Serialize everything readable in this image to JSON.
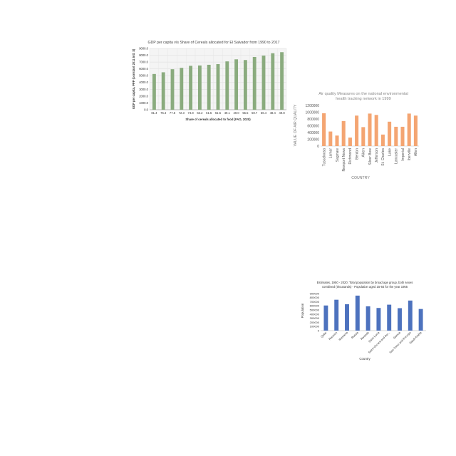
{
  "chart_data": [
    {
      "type": "bar",
      "title": "GDP per capita v/s Share of Cereals allocated for El Salvador from 1990 to 2017",
      "xlabel": "Share of cereals allocated to food (FAO, 2020)",
      "ylabel": "GDP per capita, PPP (constant 2011 intl. $)",
      "categories": [
        "81.4",
        "75.4",
        "77.5",
        "72.3",
        "74.8",
        "63.2",
        "61.5",
        "61.5",
        "49.1",
        "49.0",
        "55.5",
        "50.7",
        "56.4",
        "48.4",
        "49.8"
      ],
      "values": [
        5250,
        5500,
        5950,
        6150,
        6450,
        6500,
        6600,
        6700,
        7100,
        7400,
        7300,
        7750,
        7950,
        8300,
        8450
      ],
      "ylim": [
        0,
        9000
      ],
      "yticks": [
        "0.0",
        "1000.0",
        "2000.0",
        "3000.0",
        "4000.0",
        "5000.0",
        "6000.0",
        "7000.0",
        "8000.0",
        "9000.0"
      ],
      "grid": true,
      "color": "#8aab7e"
    },
    {
      "type": "bar",
      "title": "Air quality Measures on the national environmental health tracking network in 1999",
      "xlabel": "COUNTRY",
      "ylabel": "VALUE OF AIR QUALITY",
      "categories": [
        "Tuscaloosa",
        "Lamar",
        "Saginaw",
        "Newport News",
        "Richmond",
        "Benton",
        "Aiken",
        "Silver Bow",
        "Jefferson",
        "St. Charles",
        "Lake",
        "Lancaster",
        "Imperial",
        "Iberville",
        "Allen"
      ],
      "values": [
        970000,
        430000,
        310000,
        740000,
        250000,
        900000,
        560000,
        960000,
        920000,
        340000,
        720000,
        570000,
        570000,
        960000,
        900000
      ],
      "ylim": [
        0,
        1200000
      ],
      "yticks": [
        "0",
        "200000",
        "400000",
        "600000",
        "800000",
        "1000000",
        "1200000"
      ],
      "grid": false,
      "color": "#f4a572"
    },
    {
      "type": "bar",
      "title": "Estimates, 1950 - 2020: Total population by broad age group, both sexes combined (thousands) - Population aged 15-64 for the year 1955",
      "xlabel": "Country",
      "ylabel": "Population",
      "categories": [
        "Qatar",
        "Reunion",
        "Romania",
        "Russia",
        "Rwanda",
        "Saint Lucia",
        "Saint Vincent and the...",
        "Samoa",
        "Sao Tome and Principe",
        "Saudi Arabia"
      ],
      "values": [
        610000,
        750000,
        640000,
        850000,
        590000,
        550000,
        630000,
        545000,
        730000,
        525000
      ],
      "ylim": [
        0,
        900000
      ],
      "yticks": [
        "0",
        "100000",
        "200000",
        "300000",
        "400000",
        "500000",
        "600000",
        "700000",
        "800000",
        "900000"
      ],
      "grid": false,
      "color": "#4d72be"
    }
  ]
}
